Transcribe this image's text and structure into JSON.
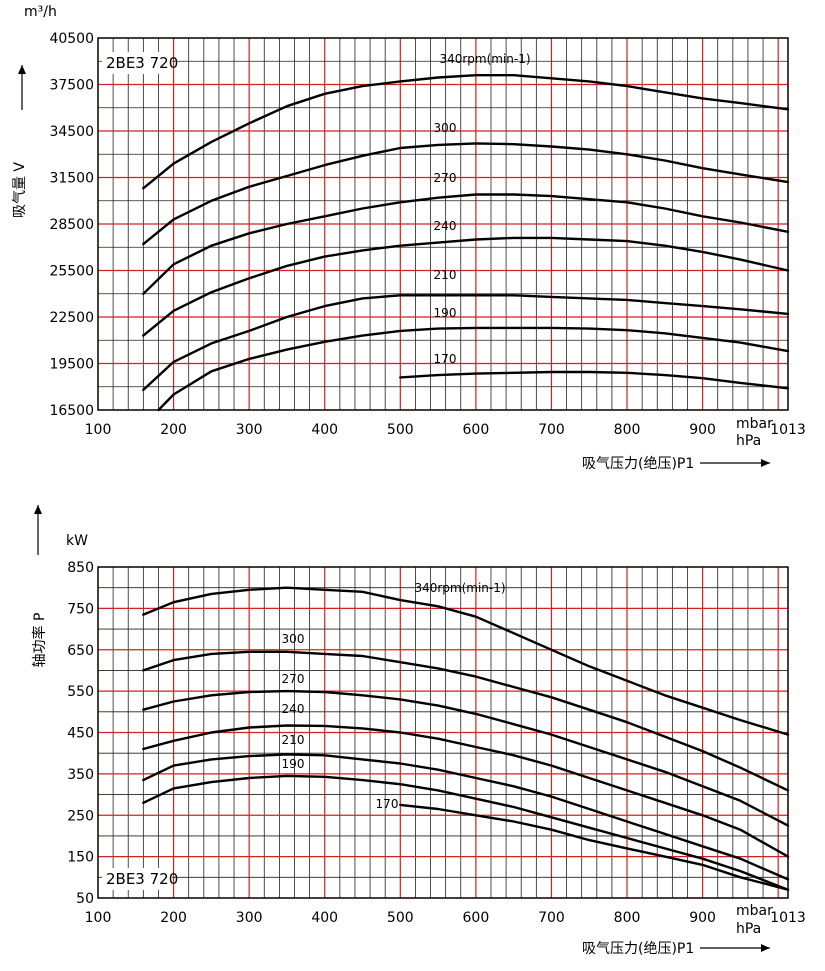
{
  "chart_data": [
    {
      "type": "line",
      "model": "2BE3 720",
      "unit": "m³/h",
      "ylabel": "吸气量 V",
      "xlabel": "吸气压力(绝压)P1",
      "xunit_1": "mbar",
      "xunit_2": "hPa",
      "xlim": [
        100,
        1013
      ],
      "ylim": [
        16500,
        40500
      ],
      "xticks": [
        100,
        200,
        300,
        400,
        500,
        600,
        700,
        800,
        900,
        1013
      ],
      "yticks": [
        16500,
        19500,
        22500,
        25500,
        28500,
        31500,
        34500,
        37500,
        40500
      ],
      "series": [
        {
          "name": "340rpm(min-1)",
          "x": [
            160,
            200,
            250,
            300,
            350,
            400,
            450,
            500,
            550,
            600,
            650,
            700,
            750,
            800,
            850,
            900,
            950,
            1013
          ],
          "y": [
            30800,
            32400,
            33800,
            35000,
            36100,
            36900,
            37400,
            37700,
            37950,
            38100,
            38100,
            37900,
            37700,
            37400,
            37000,
            36600,
            36300,
            35900
          ]
        },
        {
          "name": "300",
          "x": [
            160,
            200,
            250,
            300,
            350,
            400,
            450,
            500,
            550,
            600,
            650,
            700,
            750,
            800,
            850,
            900,
            950,
            1013
          ],
          "y": [
            27200,
            28800,
            30000,
            30900,
            31600,
            32300,
            32900,
            33400,
            33600,
            33700,
            33650,
            33500,
            33300,
            33000,
            32600,
            32100,
            31700,
            31200
          ]
        },
        {
          "name": "270",
          "x": [
            160,
            200,
            250,
            300,
            350,
            400,
            450,
            500,
            550,
            600,
            650,
            700,
            750,
            800,
            850,
            900,
            950,
            1013
          ],
          "y": [
            24000,
            25900,
            27100,
            27900,
            28500,
            29000,
            29500,
            29900,
            30200,
            30400,
            30400,
            30300,
            30100,
            29900,
            29500,
            29000,
            28600,
            28000
          ]
        },
        {
          "name": "240",
          "x": [
            160,
            200,
            250,
            300,
            350,
            400,
            450,
            500,
            550,
            600,
            650,
            700,
            750,
            800,
            850,
            900,
            950,
            1013
          ],
          "y": [
            21300,
            22900,
            24100,
            25000,
            25800,
            26400,
            26800,
            27100,
            27300,
            27500,
            27600,
            27600,
            27500,
            27400,
            27100,
            26700,
            26200,
            25500
          ]
        },
        {
          "name": "210",
          "x": [
            160,
            200,
            250,
            300,
            350,
            400,
            450,
            500,
            550,
            600,
            650,
            700,
            750,
            800,
            850,
            900,
            950,
            1013
          ],
          "y": [
            17800,
            19600,
            20800,
            21600,
            22500,
            23200,
            23700,
            23900,
            23900,
            23900,
            23900,
            23800,
            23700,
            23600,
            23400,
            23200,
            23000,
            22700
          ]
        },
        {
          "name": "190",
          "x": [
            180,
            200,
            250,
            300,
            350,
            400,
            450,
            500,
            550,
            600,
            650,
            700,
            750,
            800,
            850,
            900,
            950,
            1013
          ],
          "y": [
            16500,
            17500,
            19000,
            19800,
            20400,
            20900,
            21300,
            21600,
            21750,
            21800,
            21800,
            21800,
            21750,
            21650,
            21450,
            21150,
            20850,
            20300
          ]
        },
        {
          "name": "170",
          "x": [
            500,
            550,
            600,
            650,
            700,
            750,
            800,
            850,
            900,
            950,
            1013
          ],
          "y": [
            18600,
            18750,
            18850,
            18900,
            18950,
            18950,
            18900,
            18750,
            18550,
            18250,
            17900
          ]
        }
      ]
    },
    {
      "type": "line",
      "model": "2BE3 720",
      "unit": "kW",
      "ylabel": "轴功率 P",
      "xlabel": "吸气压力(绝压)P1",
      "xunit_1": "mbar",
      "xunit_2": "hPa",
      "xlim": [
        100,
        1013
      ],
      "ylim": [
        50,
        850
      ],
      "xticks": [
        100,
        200,
        300,
        400,
        500,
        600,
        700,
        800,
        900,
        1013
      ],
      "yticks": [
        50,
        150,
        250,
        350,
        450,
        550,
        650,
        750,
        850
      ],
      "series": [
        {
          "name": "340rpm(min-1)",
          "x": [
            160,
            200,
            250,
            300,
            350,
            400,
            450,
            500,
            550,
            600,
            650,
            700,
            750,
            800,
            850,
            900,
            950,
            1013
          ],
          "y": [
            735,
            765,
            785,
            795,
            800,
            795,
            790,
            770,
            755,
            730,
            690,
            650,
            610,
            575,
            540,
            510,
            480,
            445
          ]
        },
        {
          "name": "300",
          "x": [
            160,
            200,
            250,
            300,
            350,
            400,
            450,
            500,
            550,
            600,
            650,
            700,
            750,
            800,
            850,
            900,
            950,
            1013
          ],
          "y": [
            600,
            625,
            640,
            645,
            645,
            640,
            635,
            620,
            605,
            585,
            560,
            535,
            505,
            475,
            440,
            405,
            365,
            310
          ]
        },
        {
          "name": "270",
          "x": [
            160,
            200,
            250,
            300,
            350,
            400,
            450,
            500,
            550,
            600,
            650,
            700,
            750,
            800,
            850,
            900,
            950,
            1013
          ],
          "y": [
            505,
            525,
            540,
            548,
            550,
            548,
            540,
            530,
            515,
            495,
            470,
            445,
            415,
            385,
            355,
            320,
            285,
            225
          ]
        },
        {
          "name": "240",
          "x": [
            160,
            200,
            250,
            300,
            350,
            400,
            450,
            500,
            550,
            600,
            650,
            700,
            750,
            800,
            850,
            900,
            950,
            1013
          ],
          "y": [
            410,
            430,
            450,
            462,
            467,
            466,
            460,
            450,
            435,
            415,
            395,
            370,
            340,
            310,
            280,
            250,
            215,
            150
          ]
        },
        {
          "name": "210",
          "x": [
            160,
            200,
            250,
            300,
            350,
            400,
            450,
            500,
            550,
            600,
            650,
            700,
            750,
            800,
            850,
            900,
            950,
            1013
          ],
          "y": [
            335,
            370,
            385,
            393,
            397,
            395,
            385,
            375,
            360,
            340,
            320,
            295,
            265,
            235,
            205,
            175,
            145,
            95
          ]
        },
        {
          "name": "190",
          "x": [
            160,
            200,
            250,
            300,
            350,
            400,
            450,
            500,
            550,
            600,
            650,
            700,
            750,
            800,
            850,
            900,
            950,
            1013
          ],
          "y": [
            280,
            315,
            330,
            340,
            345,
            343,
            335,
            325,
            310,
            290,
            270,
            245,
            220,
            195,
            170,
            145,
            115,
            70
          ]
        },
        {
          "name": "170",
          "x": [
            500,
            550,
            600,
            650,
            700,
            750,
            800,
            850,
            900,
            950,
            1013
          ],
          "y": [
            275,
            265,
            250,
            235,
            215,
            190,
            170,
            150,
            130,
            100,
            70
          ]
        }
      ]
    }
  ]
}
